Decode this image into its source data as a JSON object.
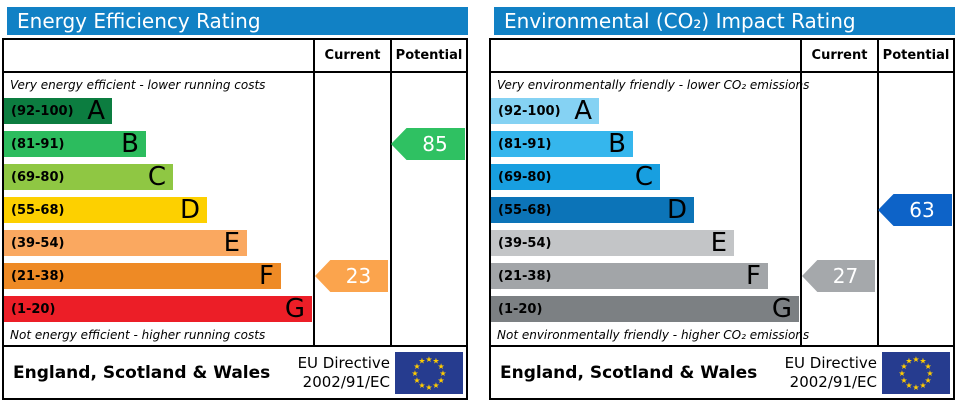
{
  "accent_colors": {
    "header_blue": "#1181c5",
    "border_black": "#000000",
    "eu_flag_blue": "#263c8f",
    "eu_star_yellow": "#ffcc00"
  },
  "panels": [
    {
      "title": "Energy Efficiency Rating",
      "title_bg": "#1181c5",
      "columns": {
        "current": "Current",
        "potential": "Potential"
      },
      "note_top": "Very energy efficient - lower running costs",
      "note_bottom": "Not energy efficient - higher running costs",
      "bands": [
        {
          "range": "(92-100)",
          "letter": "A",
          "color": "#0c7d40",
          "width_pct": 35
        },
        {
          "range": "(81-91)",
          "letter": "B",
          "color": "#2cbc5e",
          "width_pct": 46
        },
        {
          "range": "(69-80)",
          "letter": "C",
          "color": "#8fc743",
          "width_pct": 55
        },
        {
          "range": "(55-68)",
          "letter": "D",
          "color": "#fdd000",
          "width_pct": 66
        },
        {
          "range": "(39-54)",
          "letter": "E",
          "color": "#faa860",
          "width_pct": 79
        },
        {
          "range": "(21-38)",
          "letter": "F",
          "color": "#ee8a25",
          "width_pct": 90
        },
        {
          "range": "(1-20)",
          "letter": "G",
          "color": "#ec1e27",
          "width_pct": 100
        }
      ],
      "current": {
        "value": "23",
        "band_index": 5,
        "color": "#fba44d"
      },
      "potential": {
        "value": "85",
        "band_index": 1,
        "color": "#2fc162"
      },
      "footer": {
        "region": "England, Scotland & Wales",
        "directive_line1": "EU Directive",
        "directive_line2": "2002/91/EC"
      }
    },
    {
      "title": "Environmental (CO₂) Impact Rating",
      "title_bg": "#1181c5",
      "columns": {
        "current": "Current",
        "potential": "Potential"
      },
      "note_top": "Very environmentally friendly - lower CO₂ emissions",
      "note_bottom": "Not environmentally friendly - higher CO₂ emissions",
      "bands": [
        {
          "range": "(92-100)",
          "letter": "A",
          "color": "#85d2f3",
          "width_pct": 35
        },
        {
          "range": "(81-91)",
          "letter": "B",
          "color": "#35b6ed",
          "width_pct": 46
        },
        {
          "range": "(69-80)",
          "letter": "C",
          "color": "#189fe0",
          "width_pct": 55
        },
        {
          "range": "(55-68)",
          "letter": "D",
          "color": "#0c74b8",
          "width_pct": 66
        },
        {
          "range": "(39-54)",
          "letter": "E",
          "color": "#c3c5c7",
          "width_pct": 79
        },
        {
          "range": "(21-38)",
          "letter": "F",
          "color": "#a2a5a8",
          "width_pct": 90
        },
        {
          "range": "(1-20)",
          "letter": "G",
          "color": "#7c8083",
          "width_pct": 100
        }
      ],
      "current": {
        "value": "27",
        "band_index": 5,
        "color": "#a5a8ab"
      },
      "potential": {
        "value": "63",
        "band_index": 3,
        "color": "#0d63c8"
      },
      "footer": {
        "region": "England, Scotland & Wales",
        "directive_line1": "EU Directive",
        "directive_line2": "2002/91/EC"
      }
    }
  ],
  "chart_data": [
    {
      "type": "bar",
      "title": "Energy Efficiency Rating",
      "orientation": "horizontal",
      "categories": [
        "A (92-100)",
        "B (81-91)",
        "C (69-80)",
        "D (55-68)",
        "E (39-54)",
        "F (21-38)",
        "G (1-20)"
      ],
      "band_bar_width_pct": [
        35,
        46,
        55,
        66,
        79,
        90,
        100
      ],
      "band_colors": [
        "#0c7d40",
        "#2cbc5e",
        "#8fc743",
        "#fdd000",
        "#faa860",
        "#ee8a25",
        "#ec1e27"
      ],
      "series": [
        {
          "name": "Current",
          "values": [
            23
          ],
          "band": "F",
          "color": "#fba44d"
        },
        {
          "name": "Potential",
          "values": [
            85
          ],
          "band": "B",
          "color": "#2fc162"
        }
      ],
      "scale_range": [
        1,
        100
      ],
      "annotations": [
        "Very energy efficient - lower running costs",
        "Not energy efficient - higher running costs",
        "England, Scotland & Wales",
        "EU Directive 2002/91/EC"
      ]
    },
    {
      "type": "bar",
      "title": "Environmental (CO₂) Impact Rating",
      "orientation": "horizontal",
      "categories": [
        "A (92-100)",
        "B (81-91)",
        "C (69-80)",
        "D (55-68)",
        "E (39-54)",
        "F (21-38)",
        "G (1-20)"
      ],
      "band_bar_width_pct": [
        35,
        46,
        55,
        66,
        79,
        90,
        100
      ],
      "band_colors": [
        "#85d2f3",
        "#35b6ed",
        "#189fe0",
        "#0c74b8",
        "#c3c5c7",
        "#a2a5a8",
        "#7c8083"
      ],
      "series": [
        {
          "name": "Current",
          "values": [
            27
          ],
          "band": "F",
          "color": "#a5a8ab"
        },
        {
          "name": "Potential",
          "values": [
            63
          ],
          "band": "D",
          "color": "#0d63c8"
        }
      ],
      "scale_range": [
        1,
        100
      ],
      "annotations": [
        "Very environmentally friendly - lower CO₂ emissions",
        "Not environmentally friendly - higher CO₂ emissions",
        "England, Scotland & Wales",
        "EU Directive 2002/91/EC"
      ]
    }
  ]
}
